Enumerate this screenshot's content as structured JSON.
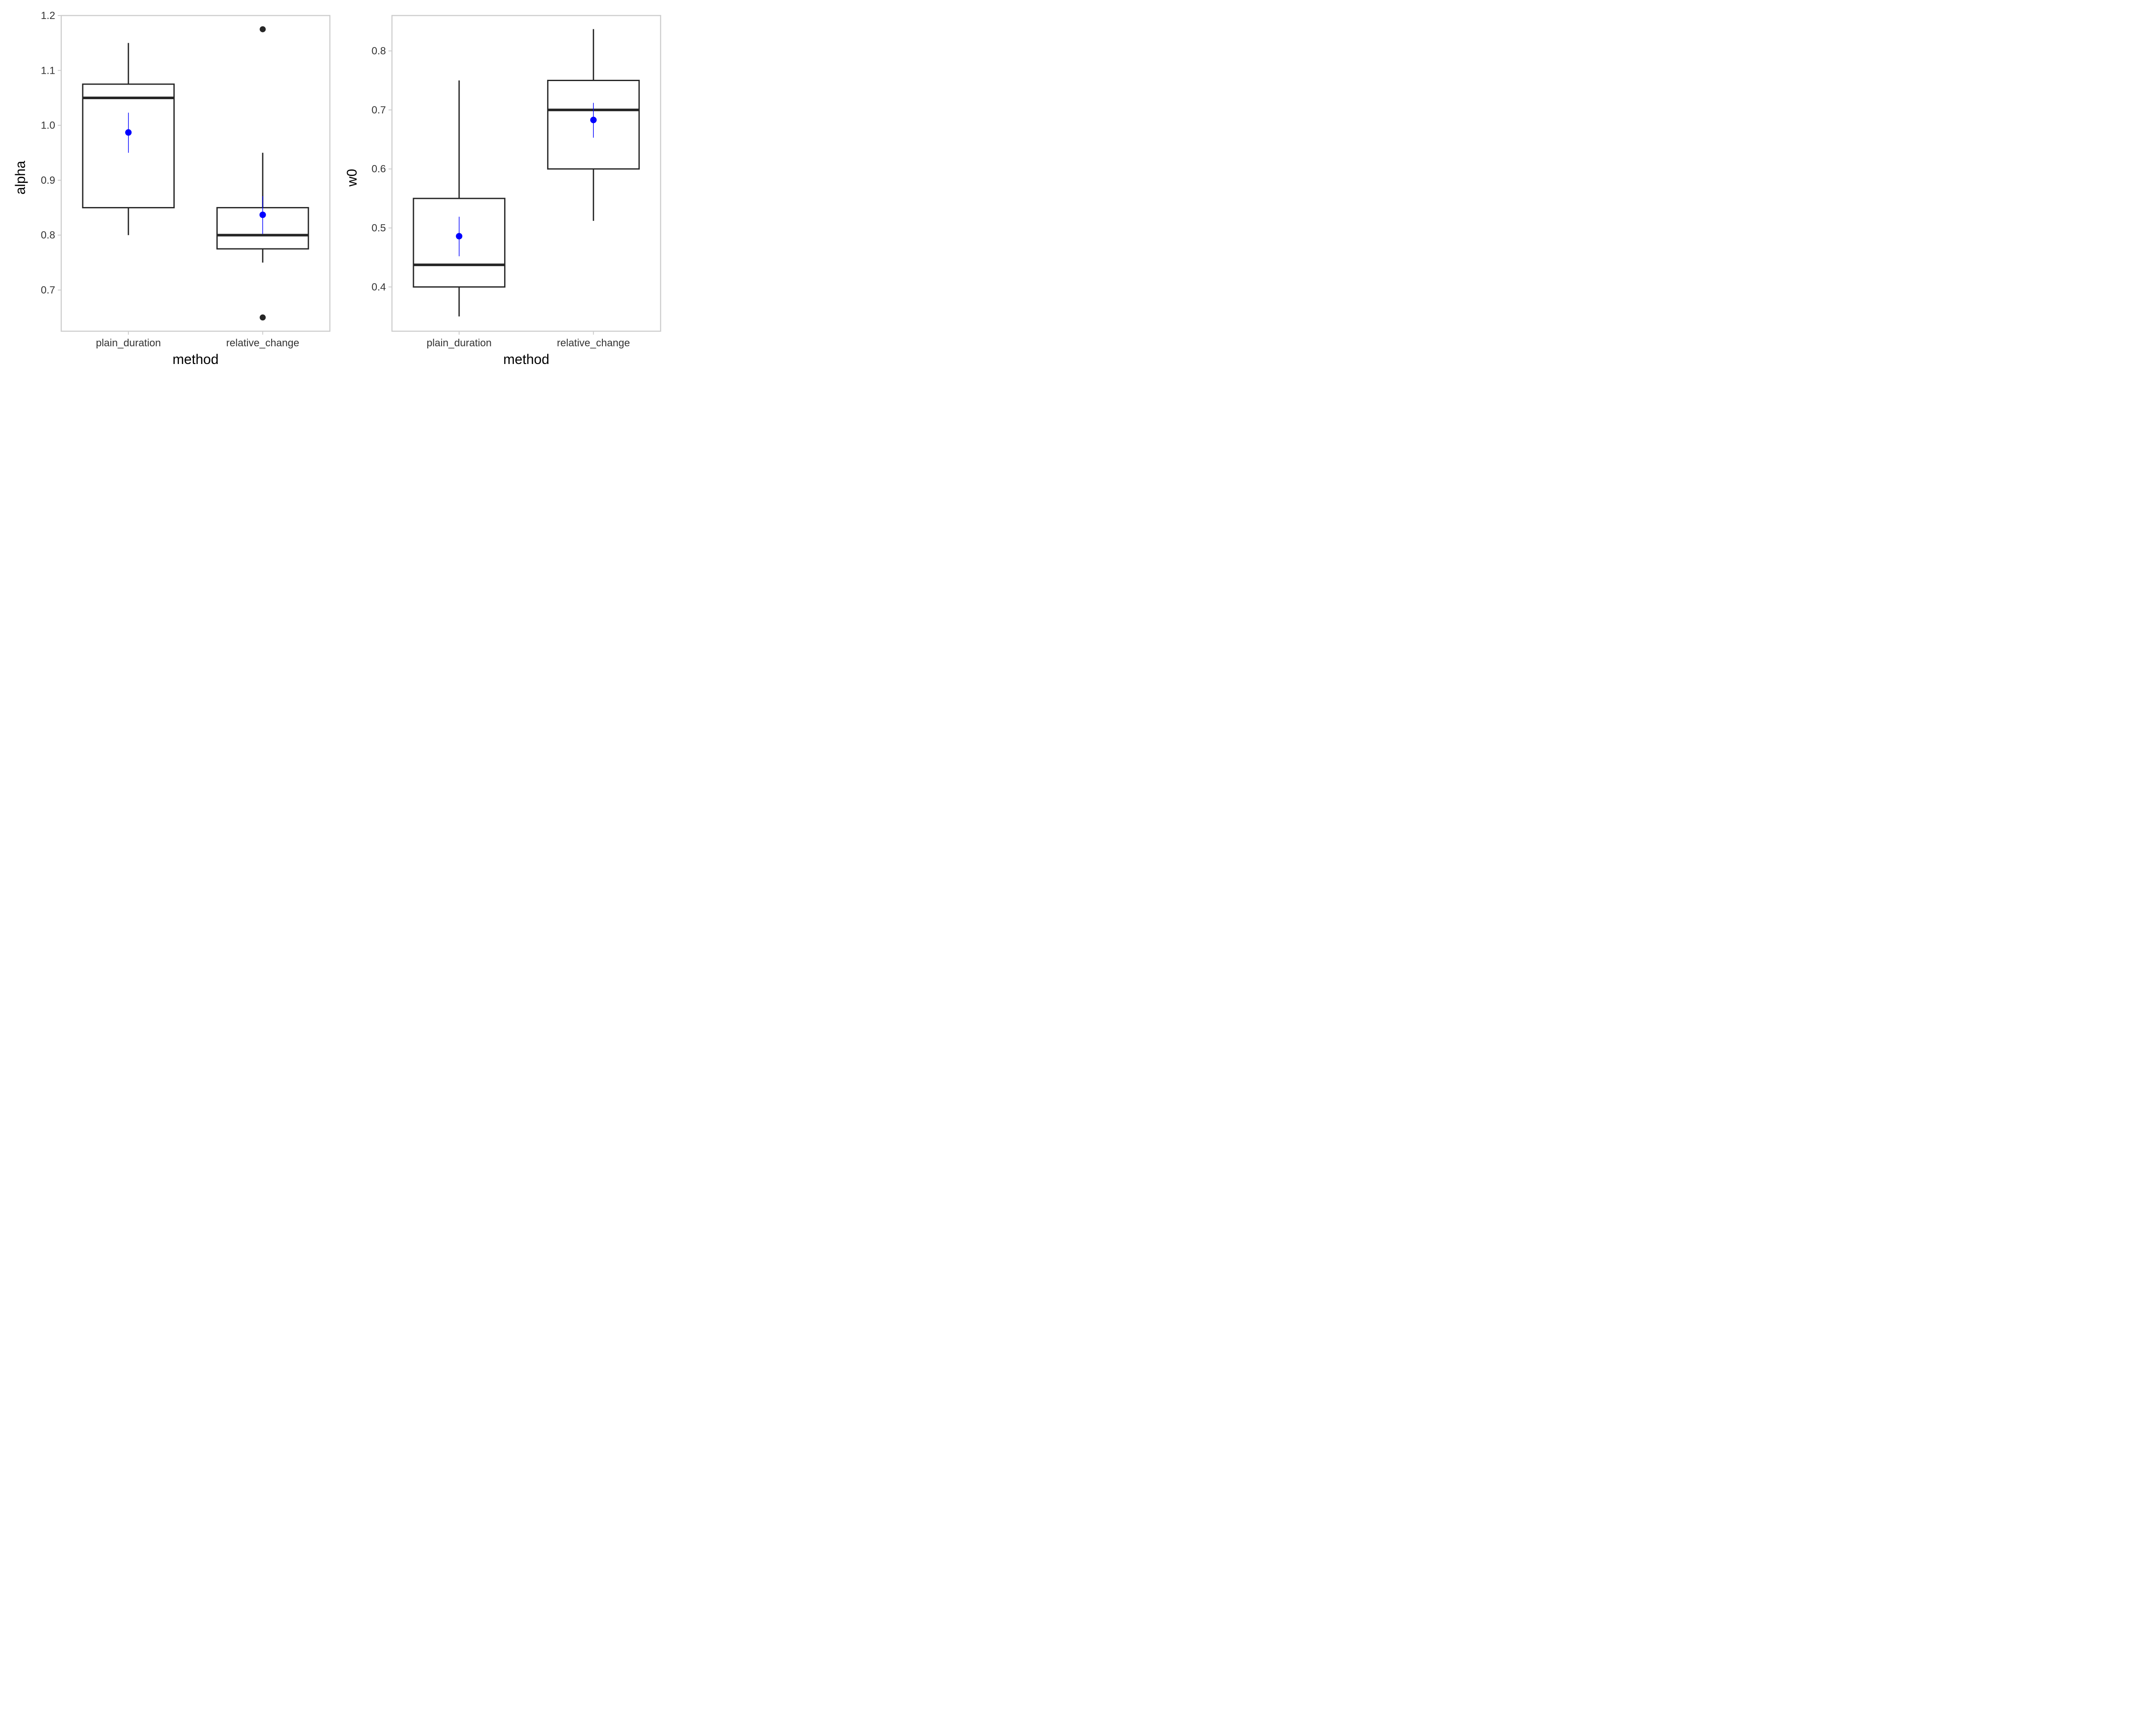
{
  "colors": {
    "box": "#262626",
    "mean": "#0000ff",
    "panel_border": "#cccccc",
    "axis_text": "#333333",
    "title_text": "#000000"
  },
  "chart_data": [
    {
      "type": "box",
      "xlabel": "method",
      "ylabel": "alpha",
      "categories": [
        "plain_duration",
        "relative_change"
      ],
      "ylim": [
        0.625,
        1.2
      ],
      "yticks": [
        0.7,
        0.8,
        0.9,
        1.0,
        1.1,
        1.2
      ],
      "ytick_labels": [
        "0.7",
        "0.8",
        "0.9",
        "1.0",
        "1.1",
        "1.2"
      ],
      "grid": false,
      "boxes": [
        {
          "category": "plain_duration",
          "whisker_low": 0.8,
          "q1": 0.85,
          "median": 1.05,
          "q3": 1.075,
          "whisker_high": 1.15,
          "outliers": [],
          "mean": 0.987,
          "mean_se_low": 0.95,
          "mean_se_high": 1.023
        },
        {
          "category": "relative_change",
          "whisker_low": 0.75,
          "q1": 0.775,
          "median": 0.8,
          "q3": 0.85,
          "whisker_high": 0.95,
          "outliers": [
            1.175,
            0.65
          ],
          "mean": 0.837,
          "mean_se_low": 0.802,
          "mean_se_high": 0.871
        }
      ]
    },
    {
      "type": "box",
      "xlabel": "method",
      "ylabel": "w0",
      "categories": [
        "plain_duration",
        "relative_change"
      ],
      "ylim": [
        0.325,
        0.86
      ],
      "yticks": [
        0.4,
        0.5,
        0.6,
        0.7,
        0.8
      ],
      "ytick_labels": [
        "0.4",
        "0.5",
        "0.6",
        "0.7",
        "0.8"
      ],
      "grid": false,
      "boxes": [
        {
          "category": "plain_duration",
          "whisker_low": 0.35,
          "q1": 0.4,
          "median": 0.4375,
          "q3": 0.55,
          "whisker_high": 0.75,
          "outliers": [],
          "mean": 0.486,
          "mean_se_low": 0.452,
          "mean_se_high": 0.519
        },
        {
          "category": "relative_change",
          "whisker_low": 0.512,
          "q1": 0.6,
          "median": 0.7,
          "q3": 0.75,
          "whisker_high": 0.837,
          "outliers": [],
          "mean": 0.683,
          "mean_se_low": 0.653,
          "mean_se_high": 0.712
        }
      ]
    }
  ]
}
